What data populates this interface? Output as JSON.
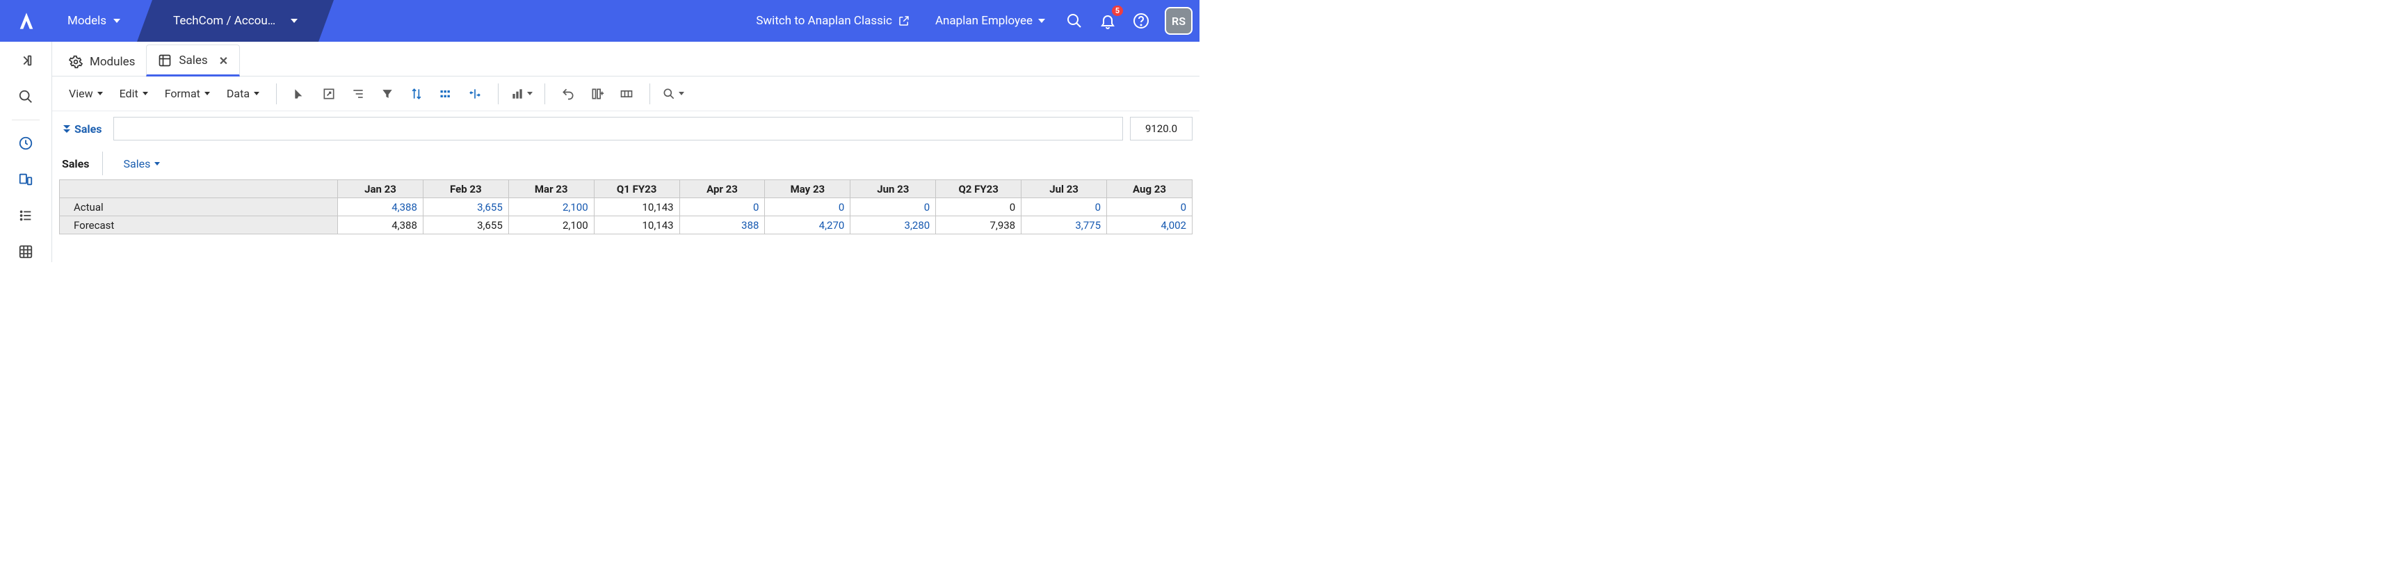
{
  "colors": {
    "primary": "#4263eb",
    "breadcrumb_bg": "#2a3d8f",
    "link_blue": "#1c5fb0",
    "header_bg": "#ececec",
    "border": "#c6c6c6"
  },
  "topbar": {
    "models_label": "Models",
    "breadcrumb": "TechCom / Accou…",
    "switch_label": "Switch to Anaplan Classic",
    "employee_label": "Anaplan Employee",
    "notification_count": "5",
    "avatar_initials": "RS"
  },
  "tabs": {
    "modules_label": "Modules",
    "sales_label": "Sales"
  },
  "toolbar_menus": {
    "view": "View",
    "edit": "Edit",
    "format": "Format",
    "data": "Data"
  },
  "subrow": {
    "pill_label": "Sales",
    "value_box": "9120.0"
  },
  "dimrow": {
    "label": "Sales",
    "dropdown": "Sales"
  },
  "grid": {
    "columns": [
      "Jan 23",
      "Feb 23",
      "Mar 23",
      "Q1 FY23",
      "Apr 23",
      "May 23",
      "Jun 23",
      "Q2 FY23",
      "Jul 23",
      "Aug 23"
    ],
    "rows": [
      {
        "label": "Actual",
        "values": [
          "4,388",
          "3,655",
          "2,100",
          "10,143",
          "0",
          "0",
          "0",
          "0",
          "0",
          "0"
        ],
        "blue_idx": [
          0,
          1,
          2,
          4,
          5,
          6,
          8,
          9
        ]
      },
      {
        "label": "Forecast",
        "values": [
          "4,388",
          "3,655",
          "2,100",
          "10,143",
          "388",
          "4,270",
          "3,280",
          "7,938",
          "3,775",
          "4,002"
        ],
        "blue_idx": [
          4,
          5,
          6,
          8,
          9
        ]
      }
    ]
  }
}
